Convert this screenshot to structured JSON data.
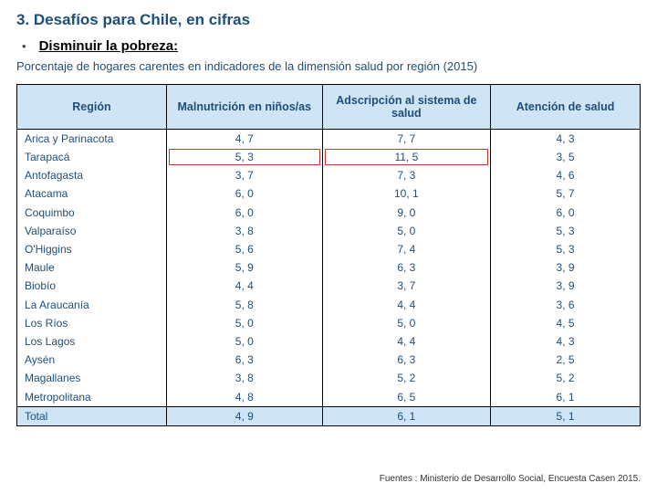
{
  "title_color": "#1f4e79",
  "header_bg": "#cfe4f5",
  "header_text": "#1f4e79",
  "cell_text": "#1f4e79",
  "highlight_border": "#d0342c",
  "title": "3. Desafíos para Chile, en cifras",
  "subtitle": "Disminuir la pobreza:",
  "caption": "Porcentaje de hogares carentes en indicadores de la dimensión salud por región (2015)",
  "columns": [
    "Región",
    "Malnutrición en niños/as",
    "Adscripción al sistema de salud",
    "Atención de salud"
  ],
  "rows": [
    {
      "region": "Arica y Parinacota",
      "values": [
        "4, 7",
        "7, 7",
        "4, 3"
      ]
    },
    {
      "region": "Tarapacá",
      "values": [
        "5, 3",
        "11, 5",
        "3, 5"
      ],
      "highlight": true
    },
    {
      "region": "Antofagasta",
      "values": [
        "3, 7",
        "7, 3",
        "4, 6"
      ]
    },
    {
      "region": "Atacama",
      "values": [
        "6, 0",
        "10, 1",
        "5, 7"
      ]
    },
    {
      "region": "Coquimbo",
      "values": [
        "6, 0",
        "9, 0",
        "6, 0"
      ]
    },
    {
      "region": "Valparaíso",
      "values": [
        "3, 8",
        "5, 0",
        "5, 3"
      ]
    },
    {
      "region": "O'Higgins",
      "values": [
        "5, 6",
        "7, 4",
        "5, 3"
      ]
    },
    {
      "region": "Maule",
      "values": [
        "5, 9",
        "6, 3",
        "3, 9"
      ]
    },
    {
      "region": "Biobío",
      "values": [
        "4, 4",
        "3, 7",
        "3, 9"
      ]
    },
    {
      "region": "La Araucanía",
      "values": [
        "5, 8",
        "4, 4",
        "3, 6"
      ]
    },
    {
      "region": "Los Ríos",
      "values": [
        "5, 0",
        "5, 0",
        "4, 5"
      ]
    },
    {
      "region": "Los Lagos",
      "values": [
        "5, 0",
        "4, 4",
        "4, 3"
      ]
    },
    {
      "region": "Aysén",
      "values": [
        "6, 3",
        "6, 3",
        "2, 5"
      ]
    },
    {
      "region": "Magallanes",
      "values": [
        "3, 8",
        "5, 2",
        "5, 2"
      ]
    },
    {
      "region": "Metropolitana",
      "values": [
        "4, 8",
        "6, 5",
        "6, 1"
      ]
    }
  ],
  "total": {
    "region": "Total",
    "values": [
      "4, 9",
      "6, 1",
      "5, 1"
    ]
  },
  "source": "Fuentes : Ministerio de Desarrollo Social, Encuesta Casen 2015."
}
